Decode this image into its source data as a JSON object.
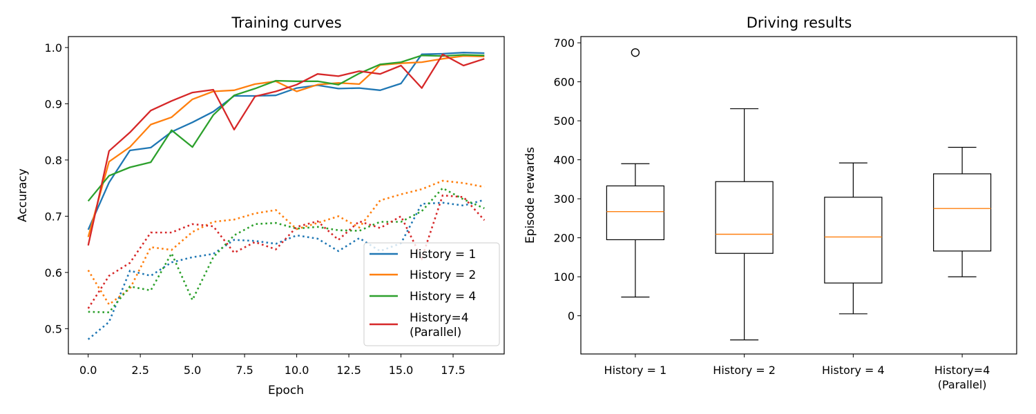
{
  "chart_data": [
    {
      "type": "line",
      "title": "Training curves",
      "xlabel": "Epoch",
      "ylabel": "Accuracy",
      "xlim": [
        -0.95,
        19.95
      ],
      "ylim": [
        0.455,
        1.0195
      ],
      "xticks": [
        0,
        2.5,
        5,
        7.5,
        10,
        12.5,
        15,
        17.5
      ],
      "xtick_labels": [
        "0.0",
        "2.5",
        "5.0",
        "7.5",
        "10.0",
        "12.5",
        "15.0",
        "17.5"
      ],
      "yticks": [
        0.5,
        0.6,
        0.7,
        0.8,
        0.9,
        1.0
      ],
      "ytick_labels": [
        "0.5",
        "0.6",
        "0.7",
        "0.8",
        "0.9",
        "1.0"
      ],
      "grid": false,
      "legend_position": "lower-right",
      "x": [
        0,
        1,
        2,
        3,
        4,
        5,
        6,
        7,
        8,
        9,
        10,
        11,
        12,
        13,
        14,
        15,
        16,
        17,
        18,
        19
      ],
      "series": [
        {
          "name": "History = 1",
          "legend": "History = 1",
          "color": "#1f77b4",
          "solid": [
            0.676,
            0.76,
            0.817,
            0.822,
            0.85,
            0.867,
            0.886,
            0.914,
            0.914,
            0.915,
            0.928,
            0.933,
            0.927,
            0.928,
            0.924,
            0.936,
            0.988,
            0.989,
            0.991,
            0.99
          ],
          "dotted": [
            0.481,
            0.512,
            0.603,
            0.594,
            0.618,
            0.627,
            0.633,
            0.658,
            0.656,
            0.651,
            0.666,
            0.66,
            0.638,
            0.661,
            0.638,
            0.652,
            0.722,
            0.724,
            0.719,
            0.729
          ]
        },
        {
          "name": "History = 2",
          "legend": "History = 2",
          "color": "#ff7f0e",
          "solid": [
            0.663,
            0.797,
            0.823,
            0.863,
            0.876,
            0.908,
            0.922,
            0.924,
            0.935,
            0.94,
            0.922,
            0.934,
            0.937,
            0.935,
            0.969,
            0.972,
            0.974,
            0.98,
            0.985,
            0.984
          ],
          "dotted": [
            0.604,
            0.543,
            0.571,
            0.645,
            0.64,
            0.672,
            0.69,
            0.694,
            0.705,
            0.711,
            0.677,
            0.688,
            0.7,
            0.68,
            0.728,
            0.739,
            0.748,
            0.763,
            0.759,
            0.752
          ]
        },
        {
          "name": "History = 4",
          "legend": "History = 4",
          "color": "#2ca02c",
          "solid": [
            0.727,
            0.772,
            0.787,
            0.796,
            0.853,
            0.823,
            0.88,
            0.915,
            0.927,
            0.941,
            0.94,
            0.94,
            0.934,
            0.954,
            0.97,
            0.974,
            0.986,
            0.985,
            0.987,
            0.986
          ],
          "dotted": [
            0.53,
            0.529,
            0.575,
            0.568,
            0.634,
            0.551,
            0.627,
            0.666,
            0.686,
            0.688,
            0.678,
            0.681,
            0.675,
            0.674,
            0.69,
            0.69,
            0.709,
            0.75,
            0.73,
            0.714
          ]
        },
        {
          "name": "History=4 (Parallel)",
          "legend": "History=4\n(Parallel)",
          "color": "#d62728",
          "solid": [
            0.648,
            0.816,
            0.849,
            0.888,
            0.905,
            0.92,
            0.925,
            0.854,
            0.913,
            0.922,
            0.934,
            0.953,
            0.949,
            0.958,
            0.953,
            0.968,
            0.928,
            0.988,
            0.968,
            0.98
          ],
          "dotted": [
            0.536,
            0.594,
            0.617,
            0.671,
            0.671,
            0.686,
            0.682,
            0.635,
            0.654,
            0.641,
            0.681,
            0.691,
            0.658,
            0.691,
            0.679,
            0.7,
            0.625,
            0.737,
            0.734,
            0.693
          ]
        }
      ]
    },
    {
      "type": "box",
      "title": "Driving results",
      "xlabel": "",
      "ylabel": "Episode rewards",
      "ylim": [
        -98,
        716
      ],
      "yticks": [
        0,
        100,
        200,
        300,
        400,
        500,
        600,
        700
      ],
      "ytick_labels": [
        "0",
        "100",
        "200",
        "300",
        "400",
        "500",
        "600",
        "700"
      ],
      "grid": false,
      "box_color": "#000000",
      "median_color": "#ff7f0e",
      "categories": [
        "History = 1",
        "History = 2",
        "History = 4",
        "History=4\n(Parallel)"
      ],
      "boxes": [
        {
          "whisker_low": 48,
          "q1": 195,
          "median": 267,
          "q3": 333,
          "whisker_high": 390,
          "outliers": [
            675
          ]
        },
        {
          "whisker_low": -62,
          "q1": 160,
          "median": 209,
          "q3": 344,
          "whisker_high": 531,
          "outliers": []
        },
        {
          "whisker_low": 5,
          "q1": 84,
          "median": 202,
          "q3": 304,
          "whisker_high": 392,
          "outliers": []
        },
        {
          "whisker_low": 100,
          "q1": 166,
          "median": 275,
          "q3": 364,
          "whisker_high": 432,
          "outliers": []
        }
      ]
    }
  ]
}
